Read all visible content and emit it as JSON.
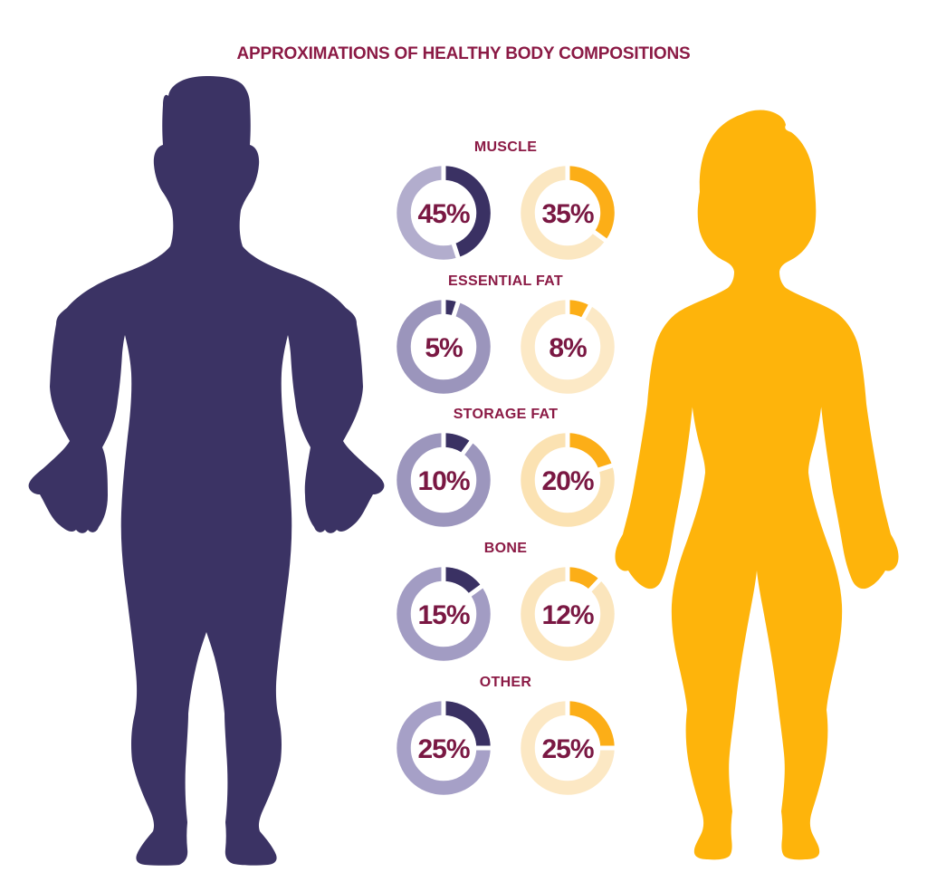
{
  "title": "APPROXIMATIONS OF HEALTHY BODY COMPOSITIONS",
  "colors": {
    "title_maroon": "#8B1A45",
    "value_maroon": "#7A1843",
    "male_body": "#3B3364",
    "male_arc": "#3A3163",
    "female_body": "#FEB40B",
    "female_arc": "#FCAE17",
    "separator_white": "#FFFFFF",
    "background": "#FFFFFF"
  },
  "figures": {
    "male": "male-body-silhouette",
    "female": "female-body-silhouette"
  },
  "chart_data": {
    "type": "donut",
    "unit": "%",
    "legend": "none",
    "layout": "5 rows x 2 donuts (male left in purple, female right in gold), value arc starts at 12 o'clock and runs clockwise with small white gaps at both arc ends",
    "rows": [
      {
        "label": "MUSCLE",
        "male_value": 45,
        "male_display": "45%",
        "male_track": "#B2ADCD",
        "female_value": 35,
        "female_display": "35%",
        "female_track": "#FBE7C1"
      },
      {
        "label": "ESSENTIAL FAT",
        "male_value": 5,
        "male_display": "5%",
        "male_track": "#9B95BC",
        "female_value": 8,
        "female_display": "8%",
        "female_track": "#FCE9C6"
      },
      {
        "label": "STORAGE FAT",
        "male_value": 10,
        "male_display": "10%",
        "male_track": "#9C96BD",
        "female_value": 20,
        "female_display": "20%",
        "female_track": "#FBE2B2"
      },
      {
        "label": "BONE",
        "male_value": 15,
        "male_display": "15%",
        "male_track": "#A29CC3",
        "female_value": 12,
        "female_display": "12%",
        "female_track": "#FBE5BC"
      },
      {
        "label": "OTHER",
        "male_value": 25,
        "male_display": "25%",
        "male_track": "#A6A0C7",
        "female_value": 25,
        "female_display": "25%",
        "female_track": "#FCE8C4"
      }
    ]
  }
}
